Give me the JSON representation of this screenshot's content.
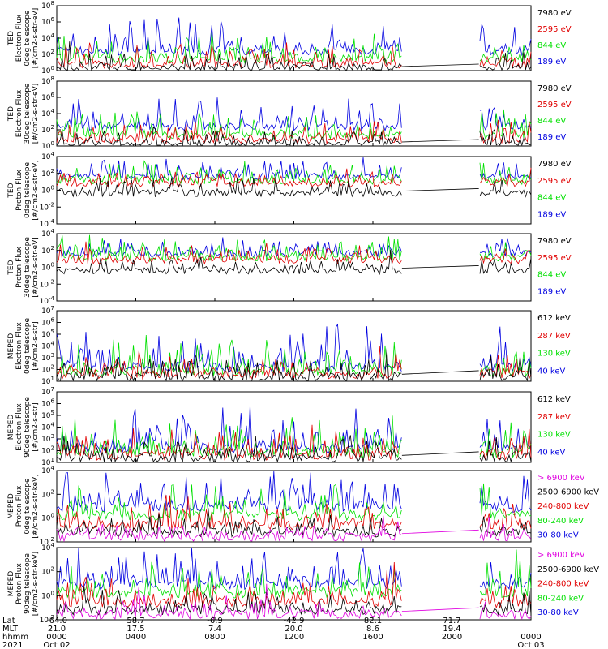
{
  "colors": {
    "black": "#000000",
    "red": "#e00000",
    "green": "#00e000",
    "blue": "#0000e0",
    "magenta": "#e000e0"
  },
  "chart_data": [
    {
      "type": "line",
      "ylabel": [
        "TED",
        "Electron Flux",
        "0deg telescope",
        "[#/cm2-s-str-eV]"
      ],
      "ytick_exponents": [
        0,
        2,
        4,
        6,
        8
      ],
      "legend": [
        {
          "label": "7980 eV",
          "color": "#000000"
        },
        {
          "label": "2595 eV",
          "color": "#e00000"
        },
        {
          "label": "844 eV",
          "color": "#00e000"
        },
        {
          "label": "189 eV",
          "color": "#0000e0"
        }
      ]
    },
    {
      "type": "line",
      "ylabel": [
        "TED",
        "Electron Flux",
        "30deg telescope",
        "[#/cm2-s-str-eV]"
      ],
      "ytick_exponents": [
        0,
        2,
        4,
        6,
        8
      ],
      "legend": [
        {
          "label": "7980 eV",
          "color": "#000000"
        },
        {
          "label": "2595 eV",
          "color": "#e00000"
        },
        {
          "label": "844 eV",
          "color": "#00e000"
        },
        {
          "label": "189 eV",
          "color": "#0000e0"
        }
      ]
    },
    {
      "type": "line",
      "ylabel": [
        "TED",
        "Proton Flux",
        "0deg telescope",
        "[#/cm2-s-str-eV]"
      ],
      "ytick_exponents": [
        -4,
        -2,
        0,
        2,
        4
      ],
      "legend": [
        {
          "label": "7980 eV",
          "color": "#000000"
        },
        {
          "label": "2595 eV",
          "color": "#e00000"
        },
        {
          "label": "844 eV",
          "color": "#00e000"
        },
        {
          "label": "189 eV",
          "color": "#0000e0"
        }
      ]
    },
    {
      "type": "line",
      "ylabel": [
        "TED",
        "Proton Flux",
        "30deg telescope",
        "[#/cm2-s-str-eV]"
      ],
      "ytick_exponents": [
        -4,
        -2,
        0,
        2,
        4
      ],
      "legend": [
        {
          "label": "7980 eV",
          "color": "#000000"
        },
        {
          "label": "2595 eV",
          "color": "#e00000"
        },
        {
          "label": "844 eV",
          "color": "#00e000"
        },
        {
          "label": "189 eV",
          "color": "#0000e0"
        }
      ]
    },
    {
      "type": "line",
      "ylabel": [
        "MEPED",
        "Electron Flux",
        "0deg telescope",
        "[#/cm2-s-str]"
      ],
      "ytick_exponents": [
        1,
        2,
        3,
        4,
        5,
        6,
        7
      ],
      "legend": [
        {
          "label": "612 keV",
          "color": "#000000"
        },
        {
          "label": "287 keV",
          "color": "#e00000"
        },
        {
          "label": "130 keV",
          "color": "#00e000"
        },
        {
          "label": "40 keV",
          "color": "#0000e0"
        }
      ]
    },
    {
      "type": "line",
      "ylabel": [
        "MEPED",
        "Electron Flux",
        "90deg telescope",
        "[#/cm2-s-str]"
      ],
      "ytick_exponents": [
        1,
        2,
        3,
        4,
        5,
        6,
        7
      ],
      "legend": [
        {
          "label": "612 keV",
          "color": "#000000"
        },
        {
          "label": "287 keV",
          "color": "#e00000"
        },
        {
          "label": "130 keV",
          "color": "#00e000"
        },
        {
          "label": "40 keV",
          "color": "#0000e0"
        }
      ]
    },
    {
      "type": "line",
      "ylabel": [
        "MEPED",
        "Proton Flux",
        "0deg telescope",
        "[#/cm2-s-str-keV]"
      ],
      "ytick_exponents": [
        -2,
        0,
        2,
        4
      ],
      "legend": [
        {
          "label": "> 6900 keV",
          "color": "#e000e0"
        },
        {
          "label": "2500-6900 keV",
          "color": "#000000"
        },
        {
          "label": "240-800 keV",
          "color": "#e00000"
        },
        {
          "label": "80-240 keV",
          "color": "#00e000"
        },
        {
          "label": "30-80 keV",
          "color": "#0000e0"
        }
      ]
    },
    {
      "type": "line",
      "ylabel": [
        "MEPED",
        "Proton Flux",
        "90deg telescope",
        "[#/cm2-s-str-keV]"
      ],
      "ytick_exponents": [
        -2,
        0,
        2,
        4
      ],
      "legend": [
        {
          "label": "> 6900 keV",
          "color": "#e000e0"
        },
        {
          "label": "2500-6900 keV",
          "color": "#000000"
        },
        {
          "label": "240-800 keV",
          "color": "#e00000"
        },
        {
          "label": "80-240 keV",
          "color": "#00e000"
        },
        {
          "label": "30-80 keV",
          "color": "#0000e0"
        }
      ]
    }
  ],
  "x_axis": {
    "row_labels": [
      "Lat",
      "MLT",
      "hhmm",
      "2021"
    ],
    "columns": [
      {
        "lat": "-64.0",
        "mlt": "21.0",
        "hhmm": "0000",
        "date": "Oct 02"
      },
      {
        "lat": "58.7",
        "mlt": "17.5",
        "hhmm": "0400",
        "date": ""
      },
      {
        "lat": "-6.9",
        "mlt": "7.4",
        "hhmm": "0800",
        "date": ""
      },
      {
        "lat": "-42.9",
        "mlt": "20.0",
        "hhmm": "1200",
        "date": ""
      },
      {
        "lat": "82.1",
        "mlt": "8.6",
        "hhmm": "1600",
        "date": ""
      },
      {
        "lat": "71.7",
        "mlt": "19.4",
        "hhmm": "2000",
        "date": ""
      },
      {
        "lat": "",
        "mlt": "",
        "hhmm": "0000",
        "date": "Oct 03"
      }
    ]
  }
}
